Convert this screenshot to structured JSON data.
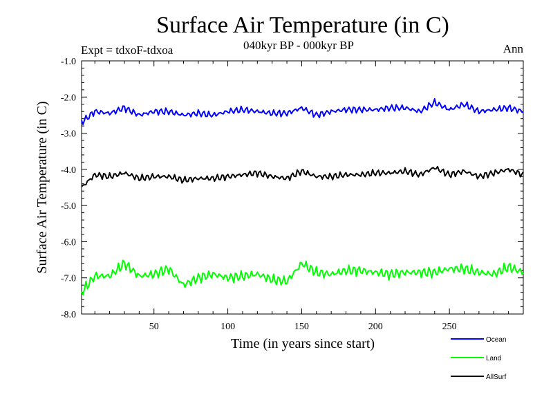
{
  "chart_data": {
    "type": "line",
    "title": "Surface Air Temperature (in C)",
    "subtitle": "040kyr BP - 000kyr BP",
    "expt_label": "Expt = tdxoF-tdxoa",
    "period_label": "Ann",
    "xlabel": "Time (in years since start)",
    "ylabel": "Surface Air Temperature (in C)",
    "xlim": [
      1,
      300
    ],
    "ylim": [
      -8.0,
      -1.0
    ],
    "x_ticks": [
      50,
      100,
      150,
      200,
      250
    ],
    "x_tick_labels": [
      "50",
      "100",
      "150",
      "200",
      "250"
    ],
    "y_ticks": [
      -8.0,
      -7.0,
      -6.0,
      -5.0,
      -4.0,
      -3.0,
      -2.0,
      -1.0
    ],
    "y_tick_labels": [
      "-8.0",
      "-7.0",
      "-6.0",
      "-5.0",
      "-4.0",
      "-3.0",
      "-2.0",
      "-1.0"
    ],
    "grid": false,
    "legend_position": "bottom-right, below plot",
    "series": [
      {
        "name": "Ocean",
        "color": "#0000ff",
        "x": [
          1,
          10,
          20,
          30,
          40,
          50,
          60,
          70,
          80,
          90,
          100,
          110,
          120,
          130,
          140,
          150,
          160,
          170,
          180,
          190,
          200,
          210,
          220,
          230,
          240,
          250,
          260,
          270,
          280,
          290,
          300
        ],
        "values": [
          -2.7,
          -2.4,
          -2.45,
          -2.3,
          -2.5,
          -2.4,
          -2.4,
          -2.5,
          -2.45,
          -2.5,
          -2.4,
          -2.35,
          -2.4,
          -2.45,
          -2.45,
          -2.3,
          -2.5,
          -2.4,
          -2.35,
          -2.35,
          -2.35,
          -2.3,
          -2.3,
          -2.4,
          -2.15,
          -2.35,
          -2.2,
          -2.4,
          -2.35,
          -2.3,
          -2.4
        ],
        "color_hex": "#0000ff"
      },
      {
        "name": "Land",
        "color": "#00ff00",
        "x": [
          1,
          10,
          20,
          30,
          40,
          50,
          60,
          70,
          80,
          90,
          100,
          110,
          120,
          130,
          140,
          150,
          160,
          170,
          180,
          190,
          200,
          210,
          220,
          230,
          240,
          250,
          260,
          270,
          280,
          290,
          300
        ],
        "values": [
          -7.4,
          -6.95,
          -6.95,
          -6.6,
          -6.95,
          -6.9,
          -6.75,
          -7.2,
          -7.0,
          -6.9,
          -7.0,
          -6.95,
          -6.9,
          -7.05,
          -7.1,
          -6.6,
          -6.85,
          -6.9,
          -6.8,
          -6.8,
          -6.85,
          -6.9,
          -6.85,
          -6.85,
          -6.85,
          -6.75,
          -6.75,
          -6.85,
          -6.9,
          -6.7,
          -6.85
        ]
      },
      {
        "name": "AllSurf",
        "color": "#000000",
        "x": [
          1,
          10,
          20,
          30,
          40,
          50,
          60,
          70,
          80,
          90,
          100,
          110,
          120,
          130,
          140,
          150,
          160,
          170,
          180,
          190,
          200,
          210,
          220,
          230,
          240,
          250,
          260,
          270,
          280,
          290,
          300
        ],
        "values": [
          -4.5,
          -4.15,
          -4.2,
          -4.1,
          -4.25,
          -4.2,
          -4.2,
          -4.3,
          -4.25,
          -4.25,
          -4.2,
          -4.15,
          -4.1,
          -4.2,
          -4.25,
          -4.05,
          -4.2,
          -4.2,
          -4.15,
          -4.15,
          -4.1,
          -4.1,
          -4.05,
          -4.15,
          -3.95,
          -4.15,
          -4.05,
          -4.2,
          -4.1,
          -4.0,
          -4.15
        ]
      }
    ]
  }
}
